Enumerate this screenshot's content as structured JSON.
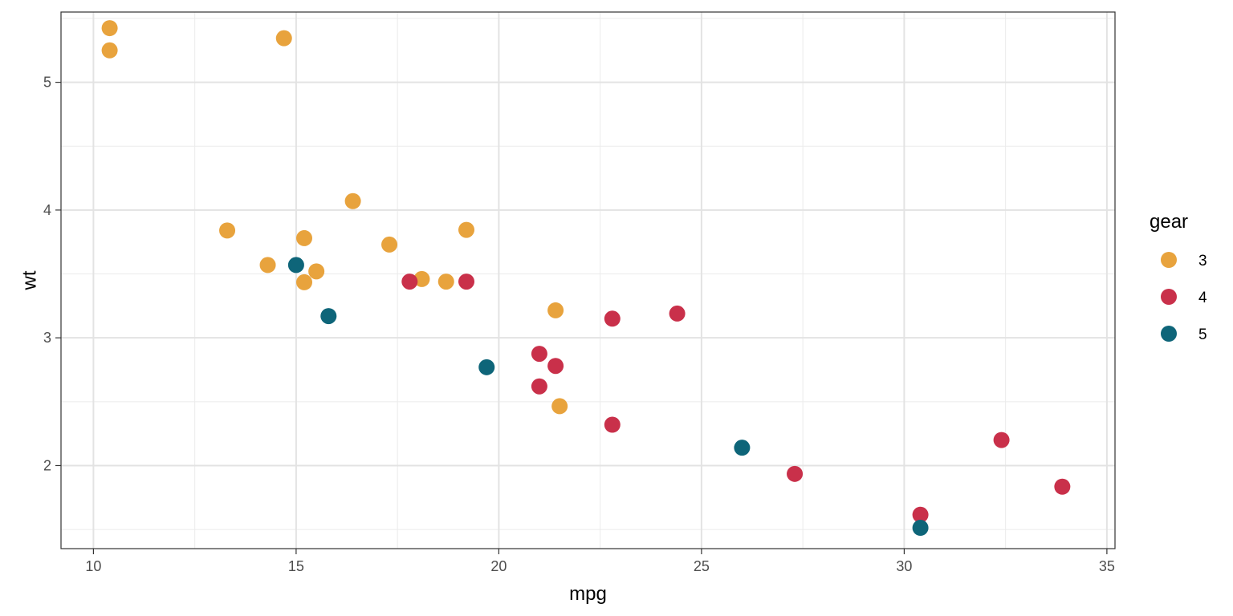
{
  "chart_data": {
    "type": "scatter",
    "xlabel": "mpg",
    "ylabel": "wt",
    "xlim": [
      9.2,
      35.2
    ],
    "ylim": [
      1.35,
      5.55
    ],
    "x_ticks": [
      10,
      15,
      20,
      25,
      30,
      35
    ],
    "y_ticks": [
      2,
      3,
      4,
      5
    ],
    "x_tick_labels": [
      "10",
      "15",
      "20",
      "25",
      "30",
      "35"
    ],
    "y_tick_labels": [
      "2",
      "3",
      "4",
      "5"
    ],
    "grid": true,
    "legend": {
      "title": "gear",
      "position": "right",
      "entries": [
        {
          "label": "3",
          "color": "#E8A33D"
        },
        {
          "label": "4",
          "color": "#C9304A"
        },
        {
          "label": "5",
          "color": "#0E6579"
        }
      ]
    },
    "series": [
      {
        "group": "3",
        "color": "#E8A33D",
        "points": [
          {
            "x": 21.4,
            "y": 3.215
          },
          {
            "x": 18.7,
            "y": 3.44
          },
          {
            "x": 18.1,
            "y": 3.46
          },
          {
            "x": 14.3,
            "y": 3.57
          },
          {
            "x": 16.4,
            "y": 4.07
          },
          {
            "x": 17.3,
            "y": 3.73
          },
          {
            "x": 15.2,
            "y": 3.78
          },
          {
            "x": 10.4,
            "y": 5.25
          },
          {
            "x": 10.4,
            "y": 5.424
          },
          {
            "x": 14.7,
            "y": 5.345
          },
          {
            "x": 21.5,
            "y": 2.465
          },
          {
            "x": 15.5,
            "y": 3.52
          },
          {
            "x": 15.2,
            "y": 3.435
          },
          {
            "x": 13.3,
            "y": 3.84
          },
          {
            "x": 19.2,
            "y": 3.845
          }
        ]
      },
      {
        "group": "4",
        "color": "#C9304A",
        "points": [
          {
            "x": 21.0,
            "y": 2.62
          },
          {
            "x": 21.0,
            "y": 2.875
          },
          {
            "x": 22.8,
            "y": 2.32
          },
          {
            "x": 24.4,
            "y": 3.19
          },
          {
            "x": 22.8,
            "y": 3.15
          },
          {
            "x": 19.2,
            "y": 3.44
          },
          {
            "x": 17.8,
            "y": 3.44
          },
          {
            "x": 32.4,
            "y": 2.2
          },
          {
            "x": 30.4,
            "y": 1.615
          },
          {
            "x": 33.9,
            "y": 1.835
          },
          {
            "x": 27.3,
            "y": 1.935
          },
          {
            "x": 21.4,
            "y": 2.78
          }
        ]
      },
      {
        "group": "5",
        "color": "#0E6579",
        "points": [
          {
            "x": 26.0,
            "y": 2.14
          },
          {
            "x": 30.4,
            "y": 1.513
          },
          {
            "x": 15.8,
            "y": 3.17
          },
          {
            "x": 19.7,
            "y": 2.77
          },
          {
            "x": 15.0,
            "y": 3.57
          }
        ]
      }
    ]
  }
}
